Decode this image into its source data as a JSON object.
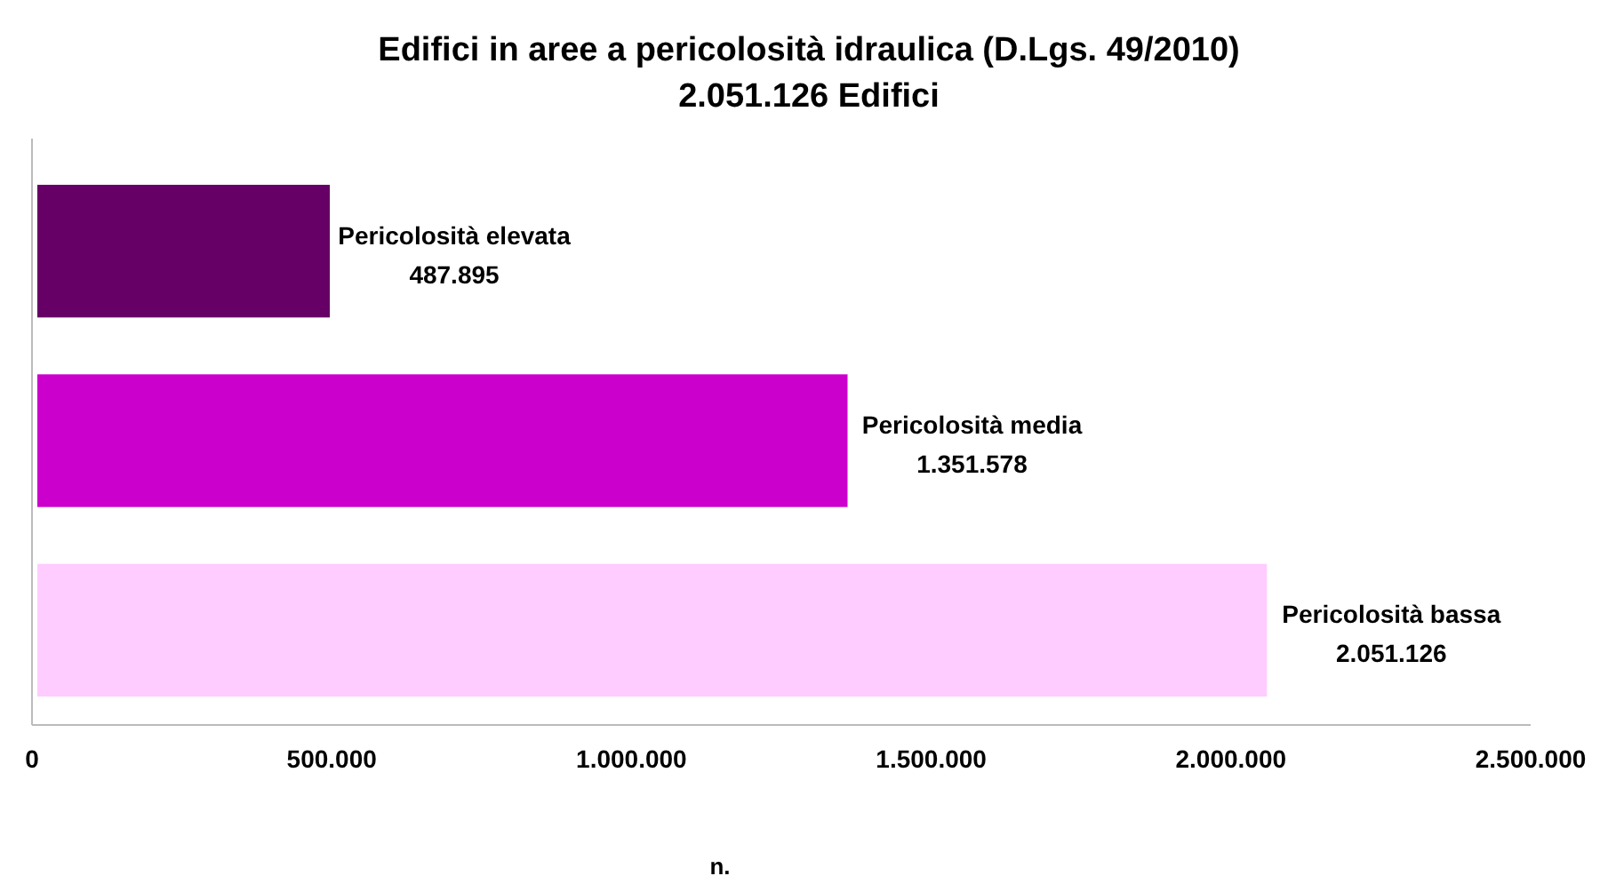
{
  "chart_data": {
    "type": "bar",
    "orientation": "horizontal",
    "title": "Edifici in aree a pericolosità idraulica (D.Lgs. 49/2010)",
    "subtitle": "2.051.126 Edifici",
    "xlabel": "n.",
    "categories": [
      "Pericolosità elevata",
      "Pericolosità media",
      "Pericolosità bassa"
    ],
    "values": [
      487895,
      1351578,
      2051126
    ],
    "colors": [
      "#660066",
      "#cc00cc",
      "#ffccff"
    ],
    "value_labels": [
      "487.895",
      "1.351.578",
      "2.051.126"
    ],
    "xlim": [
      0,
      2500000
    ],
    "xticks": [
      0,
      {
        "value": 500000,
        "label": "500.000"
      },
      {
        "value": 1000000,
        "label": "1.000.000"
      },
      {
        "value": 1500000,
        "label": "1.500.000"
      },
      {
        "value": 2000000,
        "label": "2.000.000"
      },
      {
        "value": 2500000,
        "label": "2.500.000"
      }
    ],
    "grid": false
  }
}
